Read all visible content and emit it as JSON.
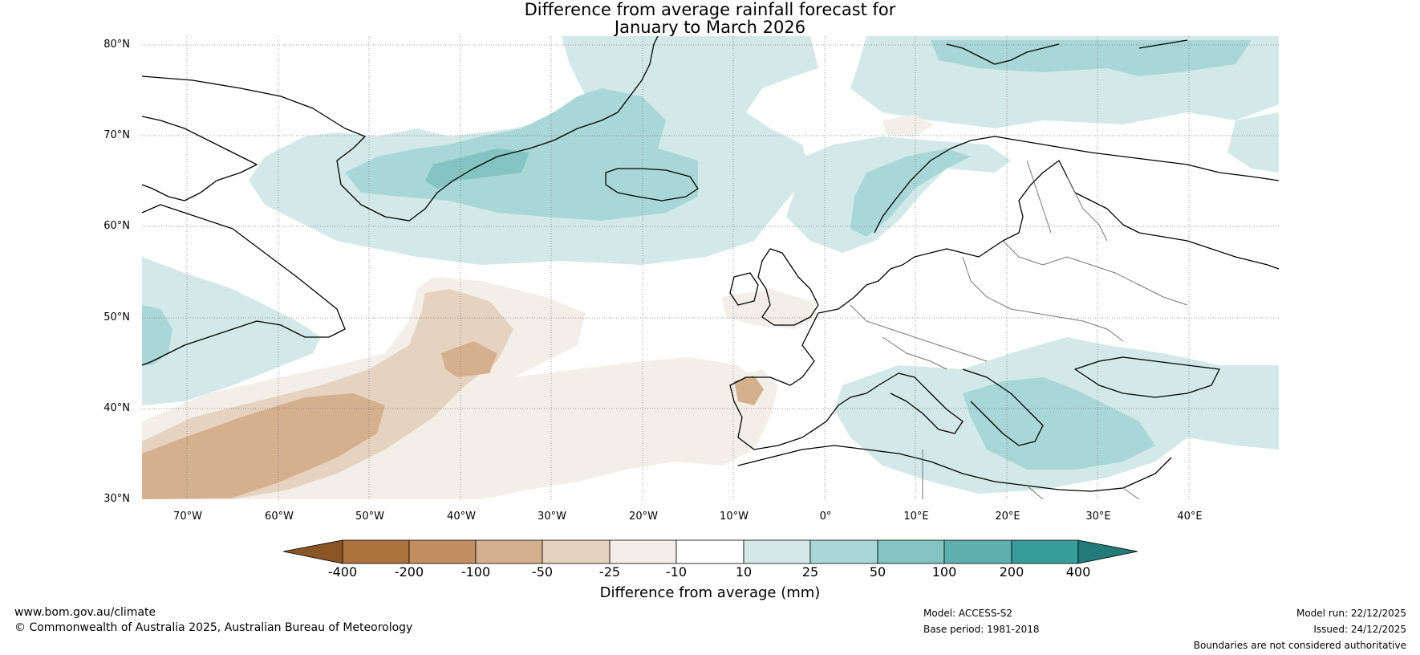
{
  "title_line1": "Difference from average rainfall forecast for",
  "title_line2": "January to March 2026",
  "chart_data": {
    "type": "map",
    "title": "Difference from average rainfall forecast for January to March 2026",
    "lat_ticks": [
      "80°N",
      "70°N",
      "60°N",
      "50°N",
      "40°N",
      "30°N"
    ],
    "lon_ticks": [
      "70°W",
      "60°W",
      "50°W",
      "40°W",
      "30°W",
      "20°W",
      "10°W",
      "0°",
      "10°E",
      "20°E",
      "30°E",
      "40°E"
    ],
    "lat_range": [
      30,
      81
    ],
    "lon_range": [
      -75,
      50
    ],
    "colorbar": {
      "label": "Difference from average (mm)",
      "ticks": [
        "-400",
        "-200",
        "-100",
        "-50",
        "-25",
        "-10",
        "10",
        "25",
        "50",
        "100",
        "200",
        "400"
      ],
      "colors": [
        "#8a5525",
        "#ad723d",
        "#c18f62",
        "#d5b08e",
        "#e5d2c1",
        "#f3eee8",
        "#ffffff",
        "#d3e8e8",
        "#a9d6d6",
        "#83c3c2",
        "#5eb0af",
        "#389c9b",
        "#237a79"
      ]
    }
  },
  "footer": {
    "website": "www.bom.gov.au/climate",
    "copyright": "© Commonwealth of Australia 2025, Australian Bureau of Meteorology",
    "model": "Model: ACCESS-S2",
    "base_period": "Base period: 1981-2018",
    "model_run": "Model run: 22/12/2025",
    "issued": "Issued: 24/12/2025",
    "disclaimer": "Boundaries are not considered authoritative"
  }
}
